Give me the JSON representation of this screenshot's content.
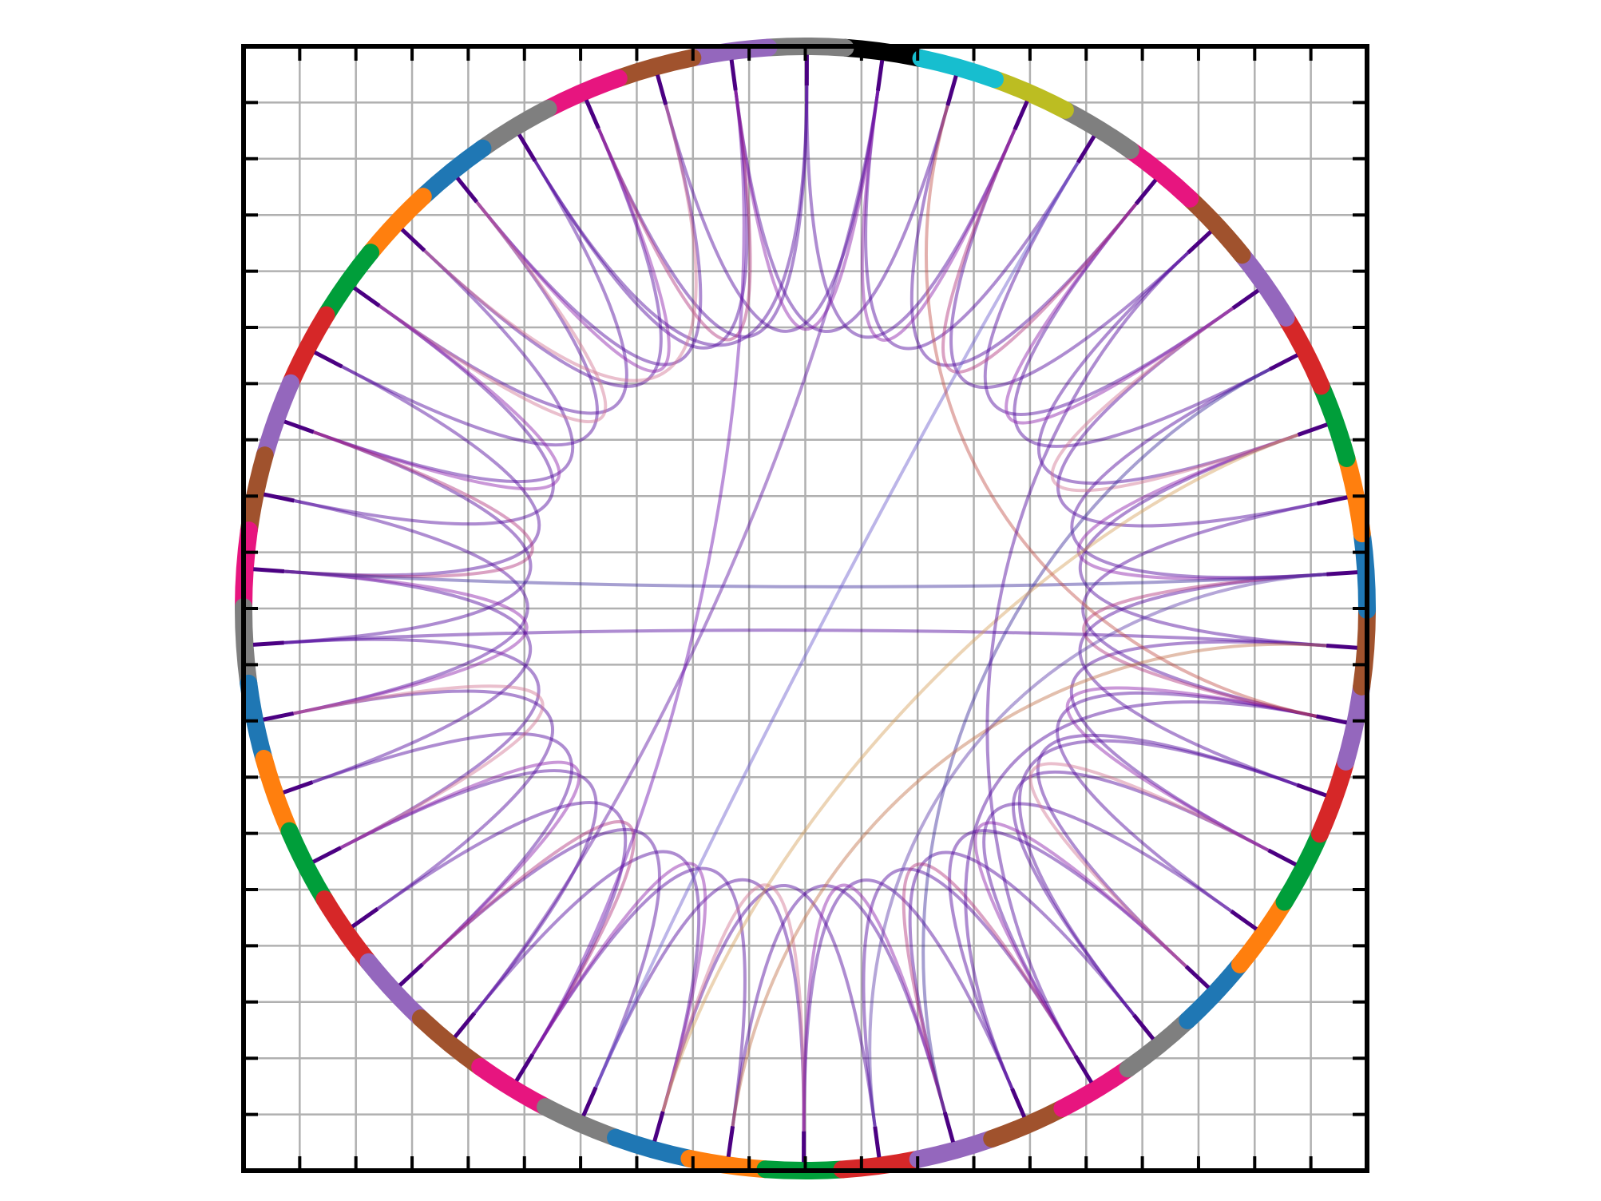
{
  "chart_data": {
    "type": "chord",
    "segment_colors": [
      "#000000",
      "#7f7f7f",
      "#9467bd",
      "#a0522d",
      "#e7157f",
      "#7f7f7f",
      "#1f77b4",
      "#ff7f0e",
      "#009e3a",
      "#d62728",
      "#9467bd",
      "#a0522d",
      "#e7157f",
      "#7f7f7f",
      "#1f77b4",
      "#ff7f0e",
      "#009e3a",
      "#d62728",
      "#9467bd",
      "#a0522d",
      "#e7157f",
      "#7f7f7f",
      "#1f77b4",
      "#ff7f0e",
      "#009e3a",
      "#d62728",
      "#9467bd",
      "#a0522d",
      "#e7157f",
      "#7f7f7f",
      "#1f77b4",
      "#ff7f0e",
      "#009e3a",
      "#d62728",
      "#9467bd",
      "#a0522d",
      "#1f77b4",
      "#ff7f0e",
      "#009e3a",
      "#d62728",
      "#9467bd",
      "#a0522d",
      "#e7157f",
      "#7f7f7f",
      "#bcbd22",
      "#17becf"
    ],
    "links": [
      [
        0,
        3
      ],
      [
        1,
        4
      ],
      [
        2,
        5
      ],
      [
        3,
        6
      ],
      [
        4,
        7
      ],
      [
        5,
        8
      ],
      [
        6,
        9
      ],
      [
        7,
        10
      ],
      [
        8,
        11
      ],
      [
        9,
        12
      ],
      [
        10,
        13
      ],
      [
        11,
        14
      ],
      [
        12,
        15
      ],
      [
        13,
        16
      ],
      [
        14,
        17
      ],
      [
        15,
        18
      ],
      [
        16,
        19
      ],
      [
        17,
        20
      ],
      [
        18,
        21
      ],
      [
        19,
        22
      ],
      [
        20,
        23
      ],
      [
        21,
        24
      ],
      [
        22,
        25
      ],
      [
        23,
        26
      ],
      [
        24,
        27
      ],
      [
        25,
        28
      ],
      [
        26,
        29
      ],
      [
        27,
        30
      ],
      [
        28,
        31
      ],
      [
        29,
        32
      ],
      [
        30,
        33
      ],
      [
        31,
        34
      ],
      [
        32,
        35
      ],
      [
        33,
        36
      ],
      [
        34,
        37
      ],
      [
        35,
        38
      ],
      [
        36,
        39
      ],
      [
        37,
        40
      ],
      [
        38,
        41
      ],
      [
        39,
        42
      ],
      [
        40,
        43
      ],
      [
        41,
        44
      ],
      [
        42,
        45
      ],
      [
        43,
        0
      ],
      [
        44,
        1
      ],
      [
        45,
        2
      ],
      [
        0,
        2
      ],
      [
        2,
        4
      ],
      [
        4,
        6
      ],
      [
        6,
        8
      ],
      [
        8,
        10
      ],
      [
        10,
        12
      ],
      [
        12,
        14
      ],
      [
        14,
        16
      ],
      [
        16,
        18
      ],
      [
        18,
        20
      ],
      [
        20,
        22
      ],
      [
        22,
        24
      ],
      [
        24,
        26
      ],
      [
        26,
        28
      ],
      [
        28,
        30
      ],
      [
        30,
        32
      ],
      [
        32,
        34
      ],
      [
        34,
        36
      ],
      [
        36,
        38
      ],
      [
        38,
        40
      ],
      [
        40,
        42
      ],
      [
        42,
        44
      ],
      [
        44,
        0
      ],
      [
        12,
        36
      ],
      [
        13,
        35
      ],
      [
        0,
        19
      ],
      [
        43,
        21
      ],
      [
        2,
        20
      ],
      [
        39,
        26
      ],
      [
        36,
        25
      ],
      [
        34,
        27
      ],
      [
        38,
        22
      ],
      [
        35,
        23
      ],
      [
        45,
        34
      ],
      [
        41,
        28
      ],
      [
        1,
        5
      ],
      [
        3,
        7
      ],
      [
        33,
        29
      ]
    ],
    "link_colors": [
      "#4b0099",
      "#4b0099",
      "#4b0099",
      "#4b0099",
      "#4b0099",
      "#4b0099",
      "#4b0099",
      "#4b0099",
      "#4b0099",
      "#4b0099",
      "#4b0099",
      "#4b0099",
      "#4b0099",
      "#4b0099",
      "#4b0099",
      "#4b0099",
      "#4b0099",
      "#4b0099",
      "#4b0099",
      "#4b0099",
      "#4b0099",
      "#4b0099",
      "#4b0099",
      "#4b0099",
      "#4b0099",
      "#4b0099",
      "#4b0099",
      "#4b0099",
      "#4b0099",
      "#4b0099",
      "#4b0099",
      "#4b0099",
      "#4b0099",
      "#4b0099",
      "#4b0099",
      "#4b0099",
      "#4b0099",
      "#4b0099",
      "#4b0099",
      "#4b0099",
      "#4b0099",
      "#4b0099",
      "#4b0099",
      "#4b0099",
      "#4b0099",
      "#4b0099",
      "#8a1aa8",
      "#b0307a",
      "#8a1aa8",
      "#d07090",
      "#8a1aa8",
      "#b0307a",
      "#8a1aa8",
      "#d07090",
      "#8a1aa8",
      "#b0307a",
      "#8a1aa8",
      "#d07090",
      "#8a1aa8",
      "#b0307a",
      "#8a1aa8",
      "#d07090",
      "#8a1aa8",
      "#b0307a",
      "#8a1aa8",
      "#d07090",
      "#8a1aa8",
      "#b0307a",
      "#8a1aa8",
      "#3a2a9a",
      "#4b0099",
      "#5a10a0",
      "#6a5acd",
      "#6a0dad",
      "#3a2a9a",
      "#5a3aa8",
      "#4b0099",
      "#d4a05a",
      "#c0704a",
      "#c0504a",
      "#4b0099",
      "#4b0099",
      "#d07090",
      "#4b0099"
    ],
    "xlim": [
      -1,
      1
    ],
    "ylim": [
      -1,
      1
    ],
    "xticks": [
      -1,
      -0.9,
      -0.8,
      -0.7,
      -0.6,
      -0.5,
      -0.4,
      -0.3,
      -0.2,
      -0.1,
      0,
      0.1,
      0.2,
      0.3,
      0.4,
      0.5,
      0.6,
      0.7,
      0.8,
      0.9,
      1
    ],
    "yticks": [
      -1,
      -0.9,
      -0.8,
      -0.7,
      -0.6,
      -0.5,
      -0.4,
      -0.3,
      -0.2,
      -0.1,
      0,
      0.1,
      0.2,
      0.3,
      0.4,
      0.5,
      0.6,
      0.7,
      0.8,
      0.9,
      1
    ],
    "grid": true
  }
}
